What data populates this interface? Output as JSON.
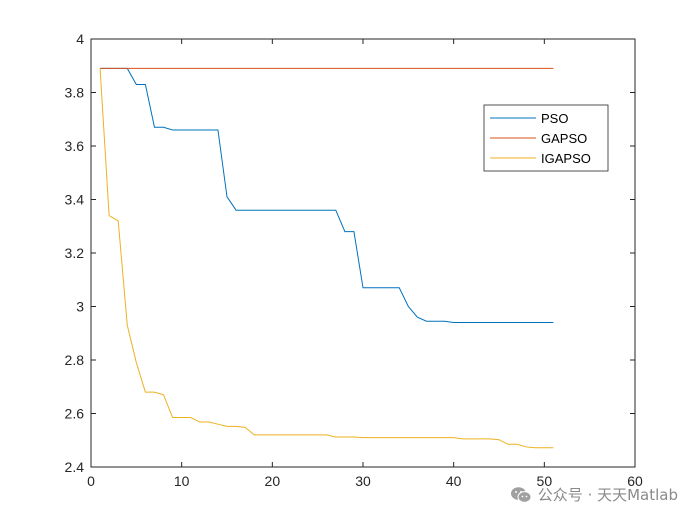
{
  "chart_data": {
    "type": "line",
    "xlim": [
      0,
      60
    ],
    "ylim": [
      2.4,
      4.0
    ],
    "xticks": [
      0,
      10,
      20,
      30,
      40,
      50,
      60
    ],
    "yticks": [
      2.4,
      2.6,
      2.8,
      3.0,
      3.2,
      3.4,
      3.6,
      3.8,
      4.0
    ],
    "xtick_labels": [
      "0",
      "10",
      "20",
      "30",
      "40",
      "50",
      "60"
    ],
    "ytick_labels": [
      "2.4",
      "2.6",
      "2.8",
      "3",
      "3.2",
      "3.4",
      "3.6",
      "3.8",
      "4"
    ],
    "grid": false,
    "legend_position": "top-right",
    "series": [
      {
        "name": "PSO",
        "color": "#0072BD",
        "x": [
          1,
          2,
          3,
          4,
          5,
          6,
          7,
          8,
          9,
          10,
          11,
          12,
          13,
          14,
          15,
          16,
          17,
          18,
          19,
          20,
          21,
          22,
          23,
          24,
          25,
          26,
          27,
          28,
          29,
          30,
          31,
          32,
          33,
          34,
          35,
          36,
          37,
          38,
          39,
          40,
          41,
          42,
          43,
          44,
          45,
          46,
          47,
          48,
          49,
          50,
          51
        ],
        "y": [
          3.89,
          3.89,
          3.89,
          3.89,
          3.83,
          3.83,
          3.67,
          3.67,
          3.66,
          3.66,
          3.66,
          3.66,
          3.66,
          3.66,
          3.41,
          3.36,
          3.36,
          3.36,
          3.36,
          3.36,
          3.36,
          3.36,
          3.36,
          3.36,
          3.36,
          3.36,
          3.36,
          3.28,
          3.28,
          3.07,
          3.07,
          3.07,
          3.07,
          3.07,
          3.0,
          2.96,
          2.945,
          2.945,
          2.945,
          2.94,
          2.94,
          2.94,
          2.94,
          2.94,
          2.94,
          2.94,
          2.94,
          2.94,
          2.94,
          2.94,
          2.94
        ]
      },
      {
        "name": "GAPSO",
        "color": "#D95319",
        "x": [
          1,
          51
        ],
        "y": [
          3.89,
          3.89
        ]
      },
      {
        "name": "IGAPSO",
        "color": "#EDB120",
        "x": [
          1,
          2,
          3,
          4,
          5,
          6,
          7,
          8,
          9,
          10,
          11,
          12,
          13,
          14,
          15,
          16,
          17,
          18,
          19,
          20,
          21,
          22,
          23,
          24,
          25,
          26,
          27,
          28,
          29,
          30,
          31,
          32,
          33,
          34,
          35,
          36,
          37,
          38,
          39,
          40,
          41,
          42,
          43,
          44,
          45,
          46,
          47,
          48,
          49,
          50,
          51
        ],
        "y": [
          3.89,
          3.34,
          3.32,
          2.93,
          2.79,
          2.68,
          2.68,
          2.67,
          2.585,
          2.585,
          2.585,
          2.568,
          2.568,
          2.56,
          2.552,
          2.552,
          2.548,
          2.52,
          2.52,
          2.52,
          2.52,
          2.52,
          2.52,
          2.52,
          2.52,
          2.52,
          2.512,
          2.512,
          2.512,
          2.51,
          2.51,
          2.51,
          2.51,
          2.51,
          2.51,
          2.51,
          2.51,
          2.51,
          2.51,
          2.51,
          2.505,
          2.505,
          2.505,
          2.505,
          2.502,
          2.485,
          2.485,
          2.475,
          2.472,
          2.472,
          2.472
        ]
      }
    ]
  },
  "watermark": {
    "icon": "wechat-icon",
    "text": "公众号 · 天天Matlab"
  }
}
